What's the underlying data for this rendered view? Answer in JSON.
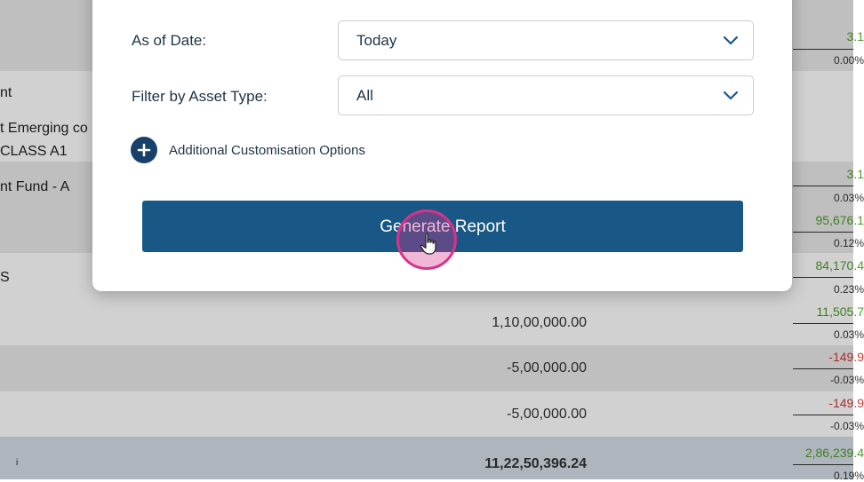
{
  "modal": {
    "as_of_date_label": "As of Date:",
    "as_of_date_value": "Today",
    "filter_label": "Filter by Asset Type:",
    "filter_value": "All",
    "customisation_label": "Additional Customisation Options",
    "generate_button": "Generate Report"
  },
  "table": {
    "rows": [
      {
        "name": "",
        "amount": "",
        "gain": "3.1",
        "gain_type": "pos",
        "pct": "0.00%"
      },
      {
        "name": "nt",
        "amount": "",
        "gain": "",
        "gain_type": "",
        "pct": ""
      },
      {
        "name": "t Emerging co",
        "name2": "CLASS A1",
        "amount": "",
        "gain": "",
        "gain_type": "",
        "pct": ""
      },
      {
        "name": "nt Fund - A",
        "amount": "",
        "gain": "3.1",
        "gain_type": "pos",
        "pct": "0.03%"
      },
      {
        "name": "",
        "amount": "",
        "gain": "95,676.1",
        "gain_type": "pos",
        "pct": "0.12%"
      },
      {
        "name": "S",
        "amount": "",
        "gain": "84,170.4",
        "gain_type": "pos",
        "pct": "0.23%"
      },
      {
        "name": "",
        "amount": "1,10,00,000.00",
        "gain": "11,505.7",
        "gain_type": "pos",
        "pct": "0.03%"
      },
      {
        "name": "",
        "amount": "-5,00,000.00",
        "gain": "-149.9",
        "gain_type": "neg",
        "pct": "-0.03%"
      },
      {
        "name": "",
        "amount": "-5,00,000.00",
        "gain": "-149.9",
        "gain_type": "neg",
        "pct": "-0.03%"
      }
    ],
    "total": {
      "marker": "i",
      "amount": "11,22,50,396.24",
      "gain": "2,86,239.4",
      "gain_type": "pos",
      "pct": "0.19%"
    }
  },
  "icons": {
    "chevron": "chevron-down-icon",
    "plus": "plus-icon",
    "cursor": "hand-pointer-icon"
  },
  "colors": {
    "primary": "#195886",
    "plus_circle": "#17406b",
    "positive": "#4e9a2a",
    "negative": "#d03a3a",
    "cursor_highlight": "#d6338a"
  }
}
